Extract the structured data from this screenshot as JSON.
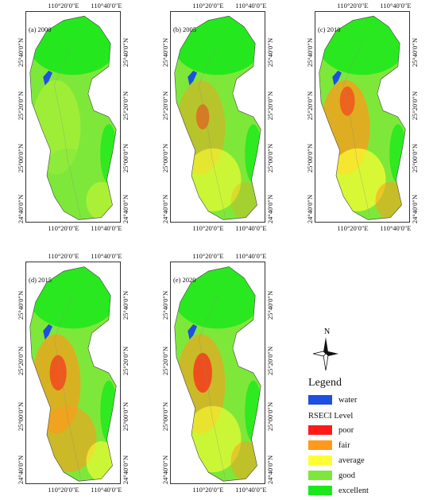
{
  "panels": [
    {
      "label": "(a) 2000"
    },
    {
      "label": "(b) 2005"
    },
    {
      "label": "(c) 2010"
    },
    {
      "label": "(d) 2015"
    },
    {
      "label": "(e) 2020"
    }
  ],
  "axes": {
    "lon_ticks": [
      "110°20′0″E",
      "110°40′0″E"
    ],
    "lat_ticks": [
      "25°40′0″N",
      "25°20′0″N",
      "25°00′0″N",
      "24°40′0″N"
    ]
  },
  "legend": {
    "north_label": "N",
    "title": "Legend",
    "water": {
      "label": "water",
      "color": "#1f4fe0"
    },
    "subtitle": "RSECI Level",
    "levels": [
      {
        "label": "poor",
        "color": "#ff1a1a"
      },
      {
        "label": "fair",
        "color": "#ff9a1a"
      },
      {
        "label": "average",
        "color": "#ffff33"
      },
      {
        "label": "good",
        "color": "#7ee83a"
      },
      {
        "label": "excellent",
        "color": "#1be81b"
      }
    ]
  }
}
